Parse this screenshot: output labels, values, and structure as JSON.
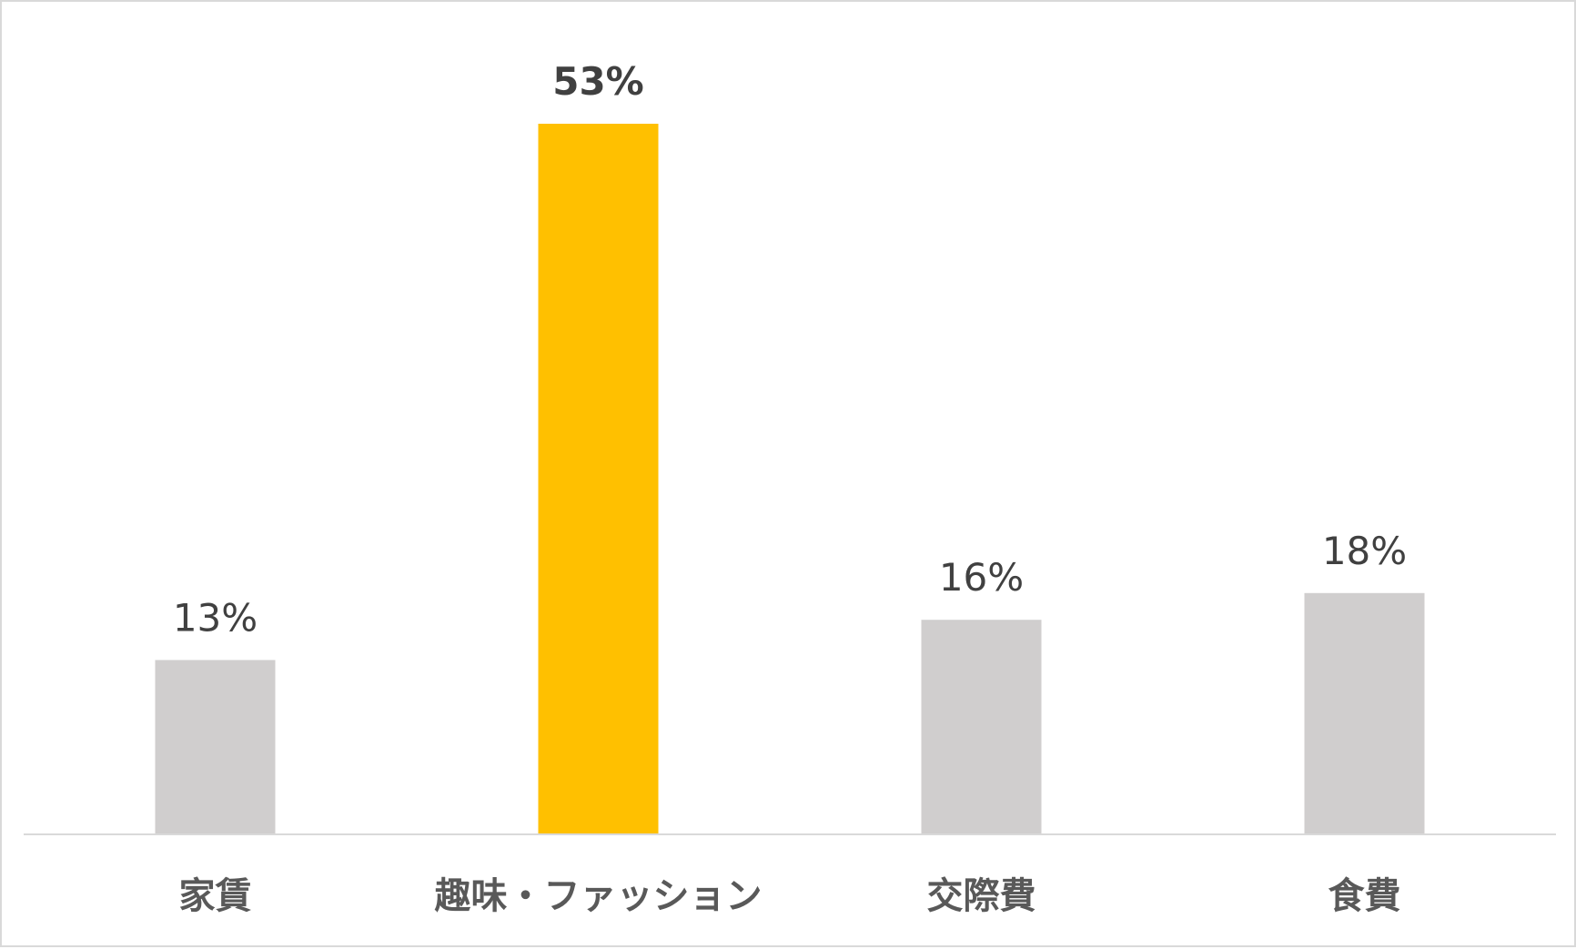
{
  "chart_data": {
    "type": "bar",
    "categories": [
      "家賃",
      "趣味・ファッション",
      "交際費",
      "食費"
    ],
    "values": [
      13,
      53,
      16,
      18
    ],
    "data_labels": [
      "13%",
      "53%",
      "16%",
      "18%"
    ],
    "unit": "%",
    "title": "",
    "xlabel": "",
    "ylabel": "",
    "ylim": [
      0,
      53
    ],
    "grid": false,
    "legend": "none",
    "colors": {
      "default_bar": "#d0cece",
      "highlight_bar": "#ffc000",
      "baseline": "#d9d9d9",
      "label_text": "#404040",
      "category_text": "#595959"
    },
    "highlight_index": 1
  }
}
